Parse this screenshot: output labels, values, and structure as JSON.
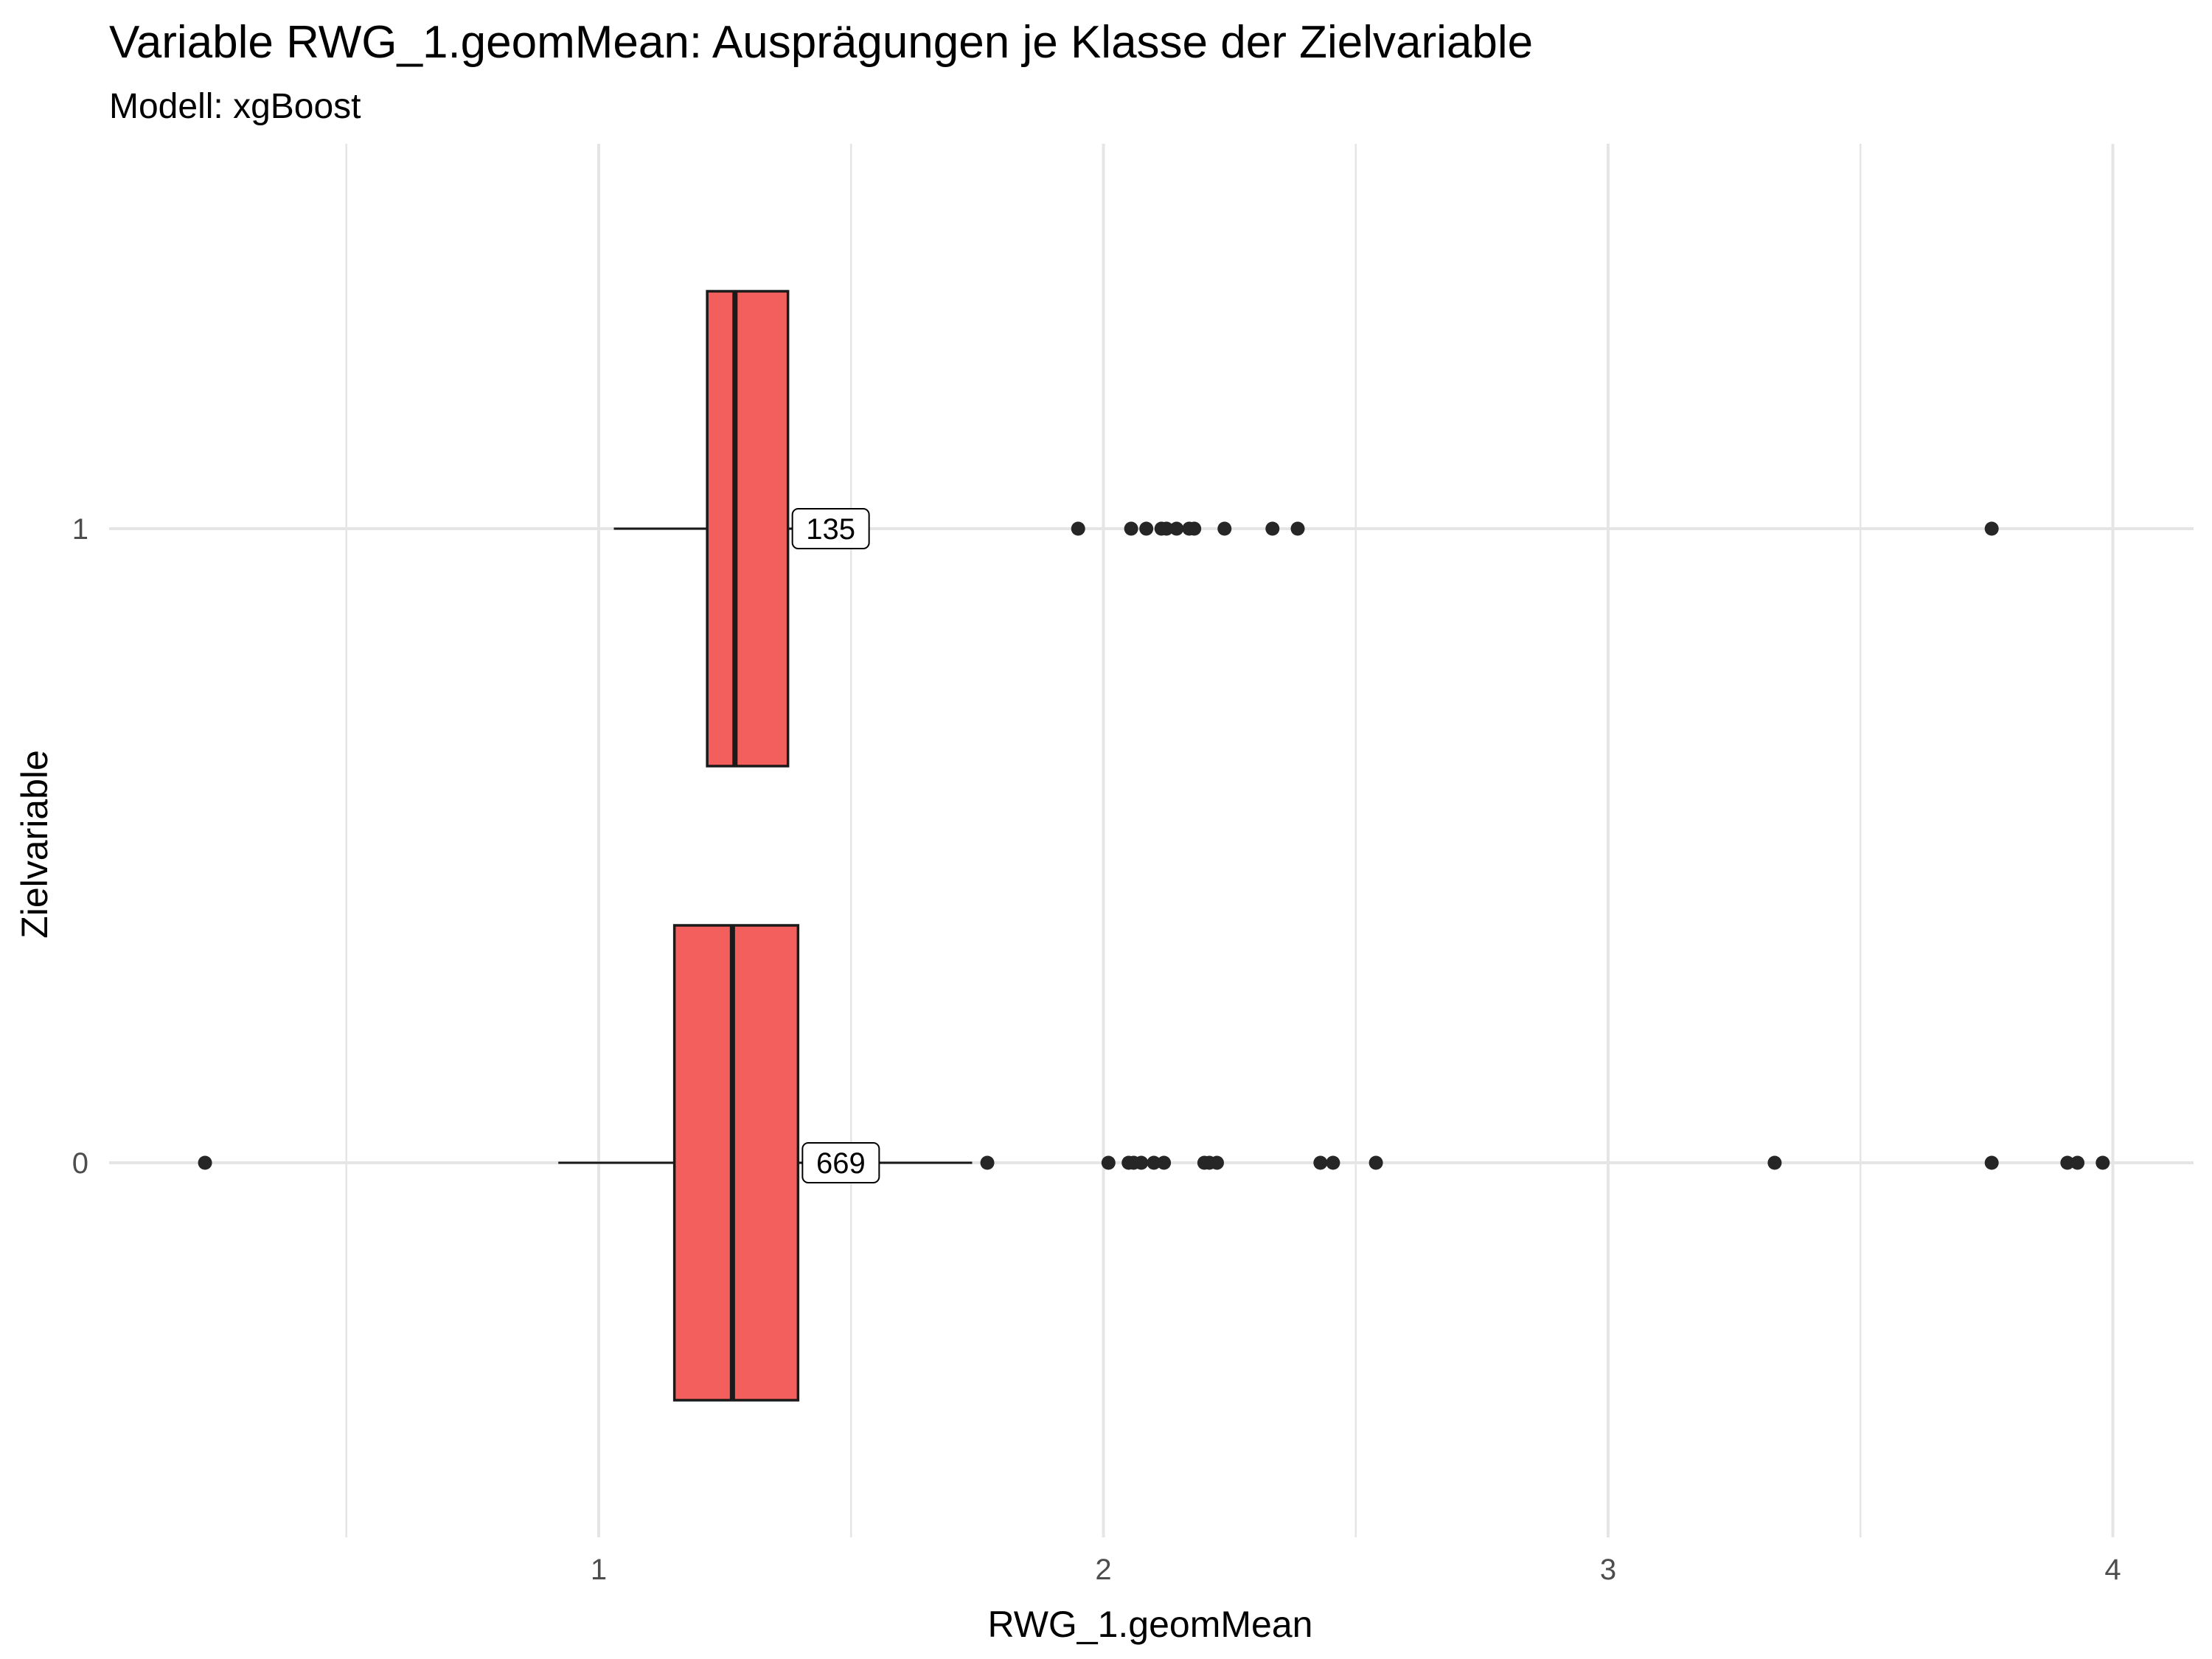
{
  "chart_data": {
    "type": "boxplot",
    "orientation": "horizontal",
    "title": "Variable RWG_1.geomMean: Ausprägungen je Klasse der Zielvariable",
    "subtitle": "Modell: xgBoost",
    "xlabel": "RWG_1.geomMean",
    "ylabel": "Zielvariable",
    "xlim": [
      0.03,
      4.16
    ],
    "xticks": [
      1,
      2,
      3,
      4
    ],
    "xticks_minor": [
      0.5,
      1.5,
      2.5,
      3.5
    ],
    "categories": [
      "0",
      "1"
    ],
    "grid": true,
    "legend": "none",
    "colors": {
      "box_fill": "#F25F5C",
      "box_stroke": "#1a1a1a",
      "grid": "#e5e5e5",
      "point": "#262626"
    },
    "boxes": [
      {
        "category": "0",
        "count_label": "669",
        "whisker_low": 0.92,
        "q1": 1.15,
        "median": 1.265,
        "q3": 1.395,
        "whisker_high": 1.74,
        "outliers": [
          0.22,
          1.77,
          2.01,
          2.05,
          2.06,
          2.075,
          2.1,
          2.12,
          2.2,
          2.21,
          2.225,
          2.43,
          2.455,
          2.54,
          3.33,
          3.76,
          3.91,
          3.93,
          3.98
        ]
      },
      {
        "category": "1",
        "count_label": "135",
        "whisker_low": 1.03,
        "q1": 1.215,
        "median": 1.27,
        "q3": 1.375,
        "whisker_high": 1.52,
        "outliers": [
          1.95,
          2.055,
          2.085,
          2.115,
          2.125,
          2.145,
          2.17,
          2.18,
          2.24,
          2.335,
          2.385,
          3.76
        ]
      }
    ]
  }
}
